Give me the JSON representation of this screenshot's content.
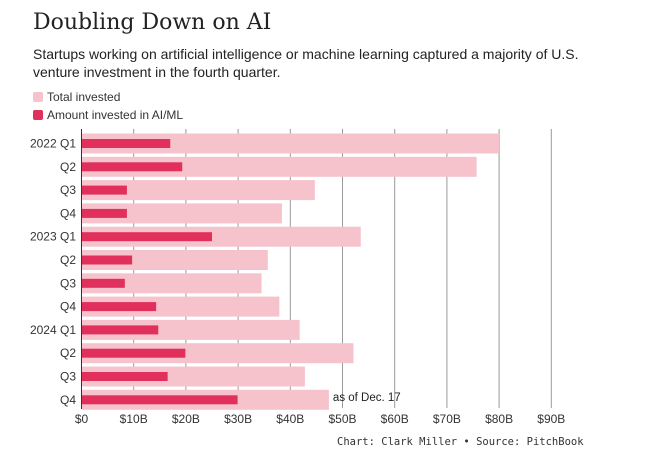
{
  "chart_data": {
    "type": "bar",
    "orientation": "horizontal",
    "title": "Doubling Down on AI",
    "subtitle": "Startups working on artificial intelligence or machine learning captured a majority of U.S. venture investment in the fourth quarter.",
    "categories": [
      "2022 Q1",
      "Q2",
      "Q3",
      "Q4",
      "2023 Q1",
      "Q2",
      "Q3",
      "Q4",
      "2024 Q1",
      "Q2",
      "Q3",
      "Q4"
    ],
    "series": [
      {
        "name": "Total invested",
        "color": "#f6c3cd",
        "values": [
          80.0,
          75.7,
          44.7,
          38.4,
          53.5,
          35.7,
          34.5,
          37.9,
          41.8,
          52.1,
          42.8,
          47.4
        ]
      },
      {
        "name": "Amount invested in AI/ML",
        "color": "#e0305b",
        "values": [
          17.0,
          19.3,
          8.7,
          8.7,
          25.0,
          9.7,
          8.3,
          14.3,
          14.7,
          19.9,
          16.5,
          29.9
        ]
      }
    ],
    "xticks": [
      "$0",
      "$10B",
      "$20B",
      "$30B",
      "$40B",
      "$50B",
      "$60B",
      "$70B",
      "$80B",
      "$90B"
    ],
    "xlim": [
      0,
      90
    ],
    "grid": true,
    "legend_position": "top-left",
    "annotation": {
      "category": "Q4",
      "index": 11,
      "text": "as of Dec. 17"
    },
    "source": "Chart: Clark Miller • Source: PitchBook"
  }
}
